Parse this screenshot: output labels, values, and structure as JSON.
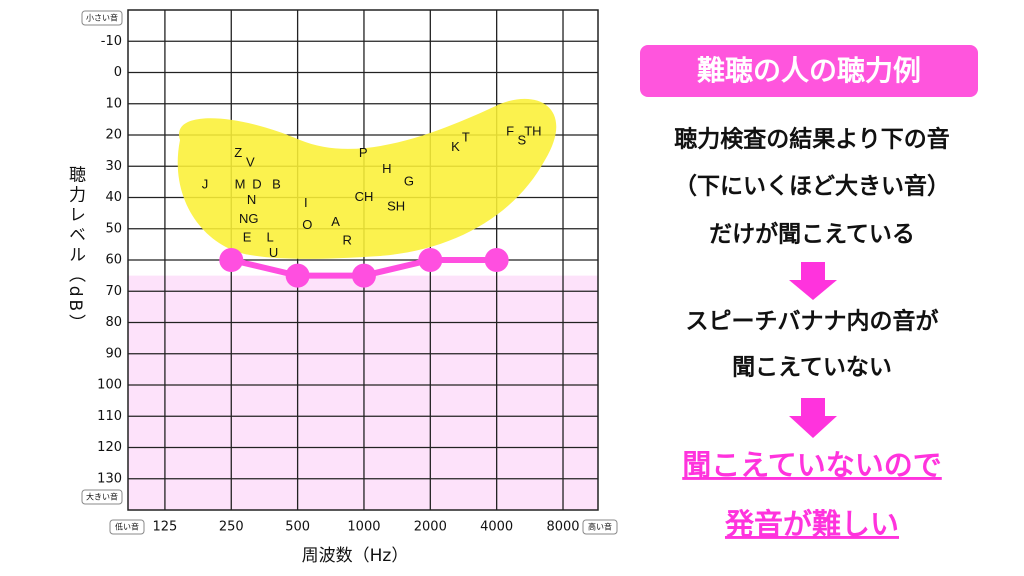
{
  "chart_data": {
    "type": "line",
    "top_label": "小さい音",
    "bottom_label": "大きい音",
    "left_label": "低い音",
    "right_label": "高い音",
    "ylabel": "聴力レベル（dB）",
    "xlabel": "周波数（Hz）",
    "log_x": true,
    "xlim": [
      85,
      11530
    ],
    "xticks": [
      125,
      250,
      500,
      1000,
      2000,
      4000,
      8000
    ],
    "ylim": [
      140,
      -20
    ],
    "yticks": [
      -10,
      0,
      10,
      20,
      30,
      40,
      50,
      60,
      70,
      80,
      90,
      100,
      110,
      120,
      130
    ],
    "grid": true,
    "shaded_region": {
      "from": 65,
      "color": "#fde2fa"
    },
    "series": [
      {
        "color": "#ff4fe0",
        "x": [
          250,
          500,
          1000,
          2000,
          4000
        ],
        "values": [
          60,
          65,
          65,
          60,
          60
        ]
      }
    ],
    "phonemes": [
      {
        "label": "J",
        "x": 190,
        "y": 36
      },
      {
        "label": "Z",
        "x": 269,
        "y": 26
      },
      {
        "label": "V",
        "x": 305,
        "y": 29
      },
      {
        "label": "M",
        "x": 274,
        "y": 36
      },
      {
        "label": "D",
        "x": 327,
        "y": 36
      },
      {
        "label": "B",
        "x": 401,
        "y": 36
      },
      {
        "label": "N",
        "x": 309,
        "y": 41
      },
      {
        "label": "NG",
        "x": 300,
        "y": 47
      },
      {
        "label": "E",
        "x": 295,
        "y": 53
      },
      {
        "label": "L",
        "x": 375,
        "y": 53
      },
      {
        "label": "U",
        "x": 389,
        "y": 58
      },
      {
        "label": "I",
        "x": 545,
        "y": 42
      },
      {
        "label": "O",
        "x": 553,
        "y": 49
      },
      {
        "label": "A",
        "x": 743,
        "y": 48
      },
      {
        "label": "R",
        "x": 839,
        "y": 54
      },
      {
        "label": "CH",
        "x": 1000,
        "y": 40
      },
      {
        "label": "SH",
        "x": 1400,
        "y": 43
      },
      {
        "label": "P",
        "x": 992,
        "y": 26
      },
      {
        "label": "H",
        "x": 1270,
        "y": 31
      },
      {
        "label": "G",
        "x": 1600,
        "y": 35
      },
      {
        "label": "K",
        "x": 2600,
        "y": 24
      },
      {
        "label": "T",
        "x": 2900,
        "y": 21
      },
      {
        "label": "F",
        "x": 4600,
        "y": 19
      },
      {
        "label": "S",
        "x": 5200,
        "y": 22
      },
      {
        "label": "TH",
        "x": 5840,
        "y": 19
      }
    ]
  },
  "panel": {
    "title": "難聴の人の聴力例",
    "lines": [
      "聴力検査の結果より下の音",
      "（下にいくほど大きい音）",
      "だけが聞こえている",
      "スピーチバナナ内の音が",
      "聞こえていない"
    ],
    "conclusion": [
      "聞こえていないので",
      "発音が難しい"
    ]
  }
}
